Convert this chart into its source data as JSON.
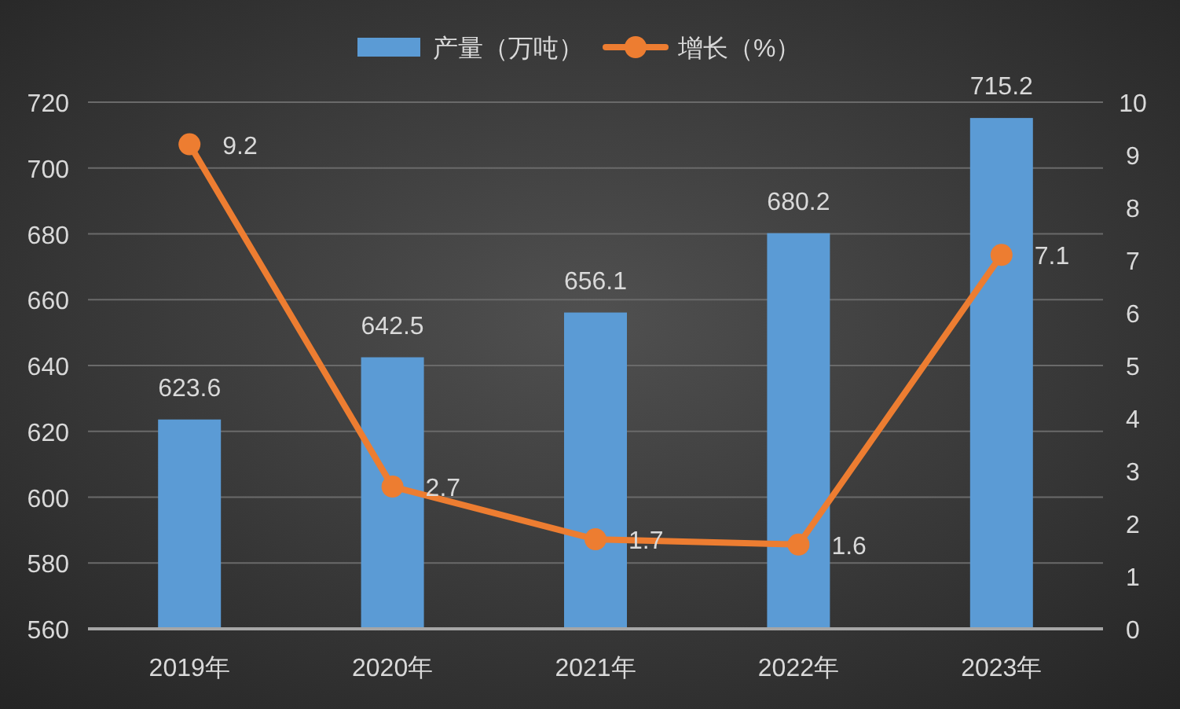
{
  "chart_data": {
    "type": "bar",
    "categories": [
      "2019年",
      "2020年",
      "2021年",
      "2022年",
      "2023年"
    ],
    "series": [
      {
        "name": "产量（万吨）",
        "color": "#5b9bd5",
        "values": [
          623.6,
          642.5,
          656.1,
          680.2,
          715.2
        ]
      },
      {
        "name": "增长（%）",
        "type": "line",
        "axis": "y2",
        "color": "#ed7d31",
        "values": [
          9.2,
          2.7,
          1.7,
          1.6,
          7.1
        ]
      }
    ],
    "ylim": [
      560,
      720
    ],
    "yticks": [
      560,
      580,
      600,
      620,
      640,
      660,
      680,
      700,
      720
    ],
    "y2lim": [
      0,
      10
    ],
    "y2ticks": [
      0,
      1,
      2,
      3,
      4,
      5,
      6,
      7,
      8,
      9,
      10
    ],
    "grid": "y",
    "legend": "top",
    "marker": "circle",
    "line_style": "solid",
    "data_labels": true
  }
}
